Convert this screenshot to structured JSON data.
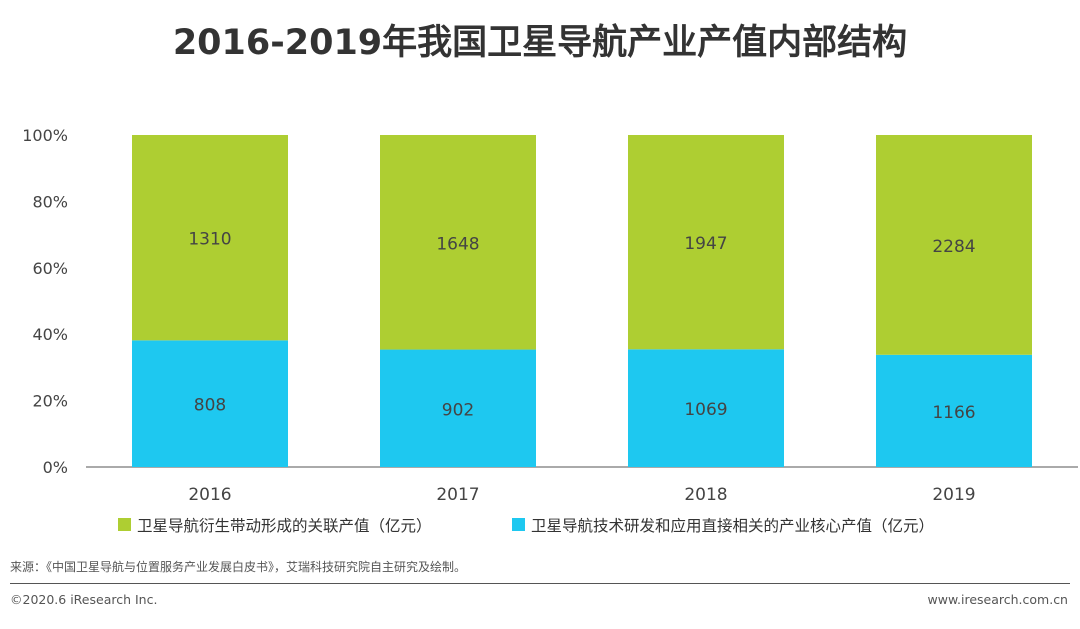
{
  "chart_data": {
    "type": "bar",
    "stacked": true,
    "normalized": true,
    "title": "2016-2019年我国卫星导航产业产值内部结构",
    "categories": [
      "2016",
      "2017",
      "2018",
      "2019"
    ],
    "series": [
      {
        "name": "卫星导航技术研发和应用直接相关的产业核心产值（亿元）",
        "values": [
          808,
          902,
          1069,
          1166
        ],
        "color": "#1EC8F0"
      },
      {
        "name": "卫星导航衍生带动形成的关联产值（亿元）",
        "values": [
          1310,
          1648,
          1947,
          2284
        ],
        "color": "#AECE32"
      }
    ],
    "yticks": [
      "0%",
      "20%",
      "40%",
      "60%",
      "80%",
      "100%"
    ],
    "ylim": [
      0,
      100
    ],
    "legend_position": "bottom",
    "grid": false
  },
  "footer": {
    "source": "来源：《中国卫星导航与位置服务产业发展白皮书》，艾瑞科技研究院自主研究及绘制。",
    "copyright": "©2020.6 iResearch Inc.",
    "website": "www.iresearch.com.cn"
  }
}
